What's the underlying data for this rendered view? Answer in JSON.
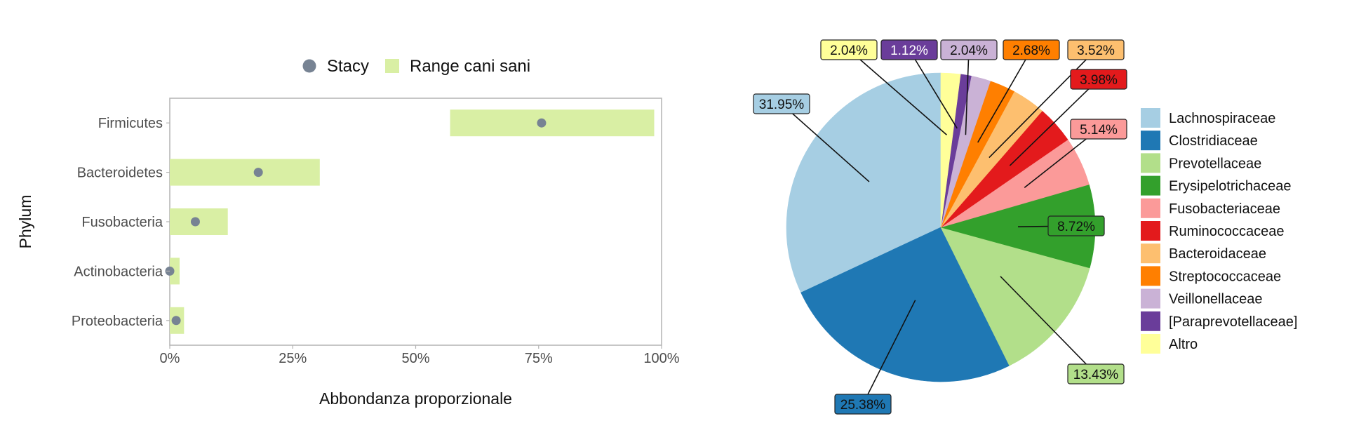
{
  "chart_data": [
    {
      "type": "dot-range",
      "legend": {
        "position": "top",
        "items": [
          {
            "label": "Stacy",
            "shape": "dot",
            "color": "#778393"
          },
          {
            "label": "Range cani sani",
            "shape": "square",
            "color": "#d9efa4"
          }
        ]
      },
      "xlabel": "Abbondanza proporzionale",
      "ylabel": "Phylum",
      "xlim": [
        0,
        1
      ],
      "xticks": [
        0,
        0.25,
        0.5,
        0.75,
        1.0
      ],
      "xtick_labels": [
        "0%",
        "25%",
        "50%",
        "75%",
        "100%"
      ],
      "categories": [
        "Firmicutes",
        "Bacteroidetes",
        "Fusobacteria",
        "Actinobacteria",
        "Proteobacteria"
      ],
      "series": [
        {
          "name": "Range cani sani",
          "ranges": [
            [
              0.57,
              0.985
            ],
            [
              0.0,
              0.305
            ],
            [
              0.0,
              0.118
            ],
            [
              0.0,
              0.02
            ],
            [
              0.0,
              0.029
            ]
          ]
        },
        {
          "name": "Stacy",
          "values": [
            0.756,
            0.18,
            0.052,
            0.0,
            0.013
          ]
        }
      ],
      "grid": false,
      "colors": {
        "range": "#d9efa4",
        "point": "#778393",
        "frame": "#b3b3b3"
      }
    },
    {
      "type": "pie",
      "legend": {
        "position": "right"
      },
      "start_angle": "top",
      "direction": "counterclockwise-from-top",
      "slices": [
        {
          "label": "Lachnospiraceae",
          "value": 31.95,
          "text": "31.95%",
          "color": "#a6cee3",
          "text_color": "#111111"
        },
        {
          "label": "Clostridiaceae",
          "value": 25.38,
          "text": "25.38%",
          "color": "#1f78b4",
          "text_color": "#111111"
        },
        {
          "label": "Prevotellaceae",
          "value": 13.43,
          "text": "13.43%",
          "color": "#b2df8a",
          "text_color": "#111111"
        },
        {
          "label": "Erysipelotrichaceae",
          "value": 8.72,
          "text": "8.72%",
          "color": "#33a02c",
          "text_color": "#111111"
        },
        {
          "label": "Fusobacteriaceae",
          "value": 5.14,
          "text": "5.14%",
          "color": "#fb9a99",
          "text_color": "#111111"
        },
        {
          "label": "Ruminococcaceae",
          "value": 3.98,
          "text": "3.98%",
          "color": "#e31a1c",
          "text_color": "#111111"
        },
        {
          "label": "Bacteroidaceae",
          "value": 3.52,
          "text": "3.52%",
          "color": "#fdbf6f",
          "text_color": "#111111"
        },
        {
          "label": "Streptococcaceae",
          "value": 2.68,
          "text": "2.68%",
          "color": "#ff7f00",
          "text_color": "#111111"
        },
        {
          "label": "Veillonellaceae",
          "value": 2.04,
          "text": "2.04%",
          "color": "#cab2d6",
          "text_color": "#111111"
        },
        {
          "label": "[Paraprevotellaceae]",
          "value": 1.12,
          "text": "1.12%",
          "color": "#6a3d9a",
          "text_color": "#ffffff"
        },
        {
          "label": "Altro",
          "value": 2.04,
          "text": "2.04%",
          "color": "#ffff99",
          "text_color": "#111111"
        }
      ]
    }
  ]
}
